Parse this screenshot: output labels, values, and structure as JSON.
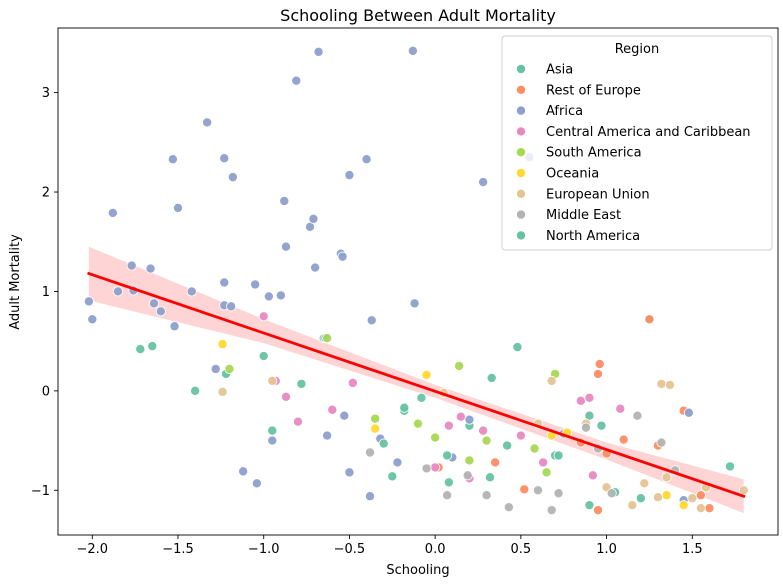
{
  "chart_data": {
    "type": "scatter",
    "title": "Schooling Between Adult Mortality",
    "xlabel": "Schooling",
    "ylabel": "Adult Mortality",
    "xlim": [
      -2.2,
      2.0
    ],
    "ylim": [
      -1.45,
      3.65
    ],
    "xticks": [
      -2.0,
      -1.5,
      -1.0,
      -0.5,
      0.0,
      0.5,
      1.0,
      1.5
    ],
    "xtick_labels": [
      "−2.0",
      "−1.5",
      "−1.0",
      "−0.5",
      "0.0",
      "0.5",
      "1.0",
      "1.5"
    ],
    "yticks": [
      -1,
      0,
      1,
      2,
      3
    ],
    "ytick_labels": [
      "−1",
      "0",
      "1",
      "2",
      "3"
    ],
    "grid": false,
    "legend": {
      "title": "Region",
      "placement": "top-right",
      "entries": [
        "Asia",
        "Rest of Europe",
        "Africa",
        "Central America and Caribbean",
        "South America",
        "Oceania",
        "European Union",
        "Middle East",
        "North America"
      ]
    },
    "colors": {
      "Asia": "#66c2a5",
      "Rest of Europe": "#fc8d62",
      "Africa": "#8da0cb",
      "Central America and Caribbean": "#e78ac3",
      "South America": "#a6d854",
      "Oceania": "#ffd92f",
      "European Union": "#e5c494",
      "Middle East": "#b3b3b3",
      "North America": "#66c2a5",
      "regression_line": "#ff0000",
      "confidence_band": "#ffcccc"
    },
    "regression": {
      "x_range": [
        -2.02,
        1.8
      ],
      "y_at_start": 1.18,
      "y_at_end": -1.06,
      "band": [
        {
          "x": -2.02,
          "lo": 0.91,
          "hi": 1.45
        },
        {
          "x": -1.0,
          "lo": 0.48,
          "hi": 0.72
        },
        {
          "x": 0.0,
          "lo": -0.07,
          "hi": 0.06
        },
        {
          "x": 1.0,
          "lo": -0.69,
          "hi": -0.52
        },
        {
          "x": 1.8,
          "lo": -1.23,
          "hi": -0.89
        }
      ]
    },
    "series": [
      {
        "name": "Asia",
        "points": [
          [
            -1.65,
            0.45
          ],
          [
            -1.22,
            0.17
          ],
          [
            0.2,
            -0.35
          ],
          [
            0.42,
            -0.55
          ],
          [
            0.48,
            0.44
          ],
          [
            0.7,
            -0.65
          ],
          [
            1.05,
            -1.02
          ],
          [
            1.2,
            -1.08
          ],
          [
            1.25,
            0.72
          ],
          [
            -0.65,
            0.53
          ],
          [
            0.08,
            -0.92
          ],
          [
            0.9,
            -0.25
          ],
          [
            -0.18,
            -0.2
          ],
          [
            0.33,
            0.13
          ],
          [
            1.72,
            -0.76
          ],
          [
            -0.95,
            -0.4
          ]
        ]
      },
      {
        "name": "Rest of Europe",
        "points": [
          [
            0.35,
            -0.72
          ],
          [
            0.52,
            -0.99
          ],
          [
            0.85,
            -0.52
          ],
          [
            0.96,
            0.27
          ],
          [
            1.0,
            -0.63
          ],
          [
            1.1,
            -0.49
          ],
          [
            1.45,
            -0.2
          ],
          [
            1.55,
            -1.05
          ],
          [
            0.95,
            0.17
          ],
          [
            1.3,
            -0.55
          ],
          [
            0.02,
            -0.77
          ],
          [
            1.25,
            0.72
          ],
          [
            0.95,
            -1.2
          ],
          [
            1.6,
            -1.18
          ]
        ]
      },
      {
        "name": "Africa",
        "points": [
          [
            -2.02,
            0.9
          ],
          [
            -2.0,
            0.72
          ],
          [
            -1.88,
            1.79
          ],
          [
            -1.85,
            1.0
          ],
          [
            -1.77,
            1.26
          ],
          [
            -1.76,
            1.01
          ],
          [
            -1.66,
            1.23
          ],
          [
            -1.64,
            0.88
          ],
          [
            -1.6,
            0.8
          ],
          [
            -1.53,
            2.33
          ],
          [
            -1.52,
            0.65
          ],
          [
            -1.5,
            1.84
          ],
          [
            -1.42,
            1.0
          ],
          [
            -1.33,
            2.7
          ],
          [
            -1.28,
            0.22
          ],
          [
            -1.23,
            2.34
          ],
          [
            -1.23,
            1.09
          ],
          [
            -1.23,
            0.86
          ],
          [
            -1.19,
            0.85
          ],
          [
            -1.18,
            2.15
          ],
          [
            -1.12,
            -0.81
          ],
          [
            -1.05,
            1.07
          ],
          [
            -1.04,
            -0.93
          ],
          [
            -0.97,
            0.95
          ],
          [
            -0.9,
            0.96
          ],
          [
            -0.88,
            1.91
          ],
          [
            -0.87,
            1.45
          ],
          [
            -0.81,
            3.12
          ],
          [
            -0.73,
            1.65
          ],
          [
            -0.71,
            1.73
          ],
          [
            -0.7,
            1.24
          ],
          [
            -0.68,
            3.41
          ],
          [
            -0.64,
            0.53
          ],
          [
            -0.63,
            -0.45
          ],
          [
            -0.55,
            1.38
          ],
          [
            -0.54,
            1.35
          ],
          [
            -0.5,
            2.17
          ],
          [
            -0.5,
            -0.82
          ],
          [
            -0.4,
            2.33
          ],
          [
            -0.37,
            0.71
          ],
          [
            -0.32,
            -0.48
          ],
          [
            -0.22,
            -0.72
          ],
          [
            -0.13,
            3.42
          ],
          [
            -0.12,
            0.88
          ],
          [
            0.28,
            2.1
          ],
          [
            0.55,
            2.35
          ],
          [
            -0.95,
            -0.5
          ],
          [
            -0.53,
            -0.25
          ],
          [
            -0.38,
            -1.06
          ],
          [
            0.1,
            -0.67
          ],
          [
            0.2,
            -0.29
          ],
          [
            0.75,
            -0.43
          ],
          [
            1.45,
            -1.1
          ],
          [
            1.48,
            -0.22
          ]
        ]
      },
      {
        "name": "Central America and Caribbean",
        "points": [
          [
            -1.0,
            0.75
          ],
          [
            -0.93,
            0.1
          ],
          [
            -0.87,
            -0.06
          ],
          [
            -0.8,
            -0.31
          ],
          [
            -0.6,
            -0.19
          ],
          [
            -0.48,
            0.08
          ],
          [
            0.0,
            -0.77
          ],
          [
            0.08,
            -0.35
          ],
          [
            0.15,
            -0.26
          ],
          [
            0.2,
            -0.88
          ],
          [
            0.28,
            -0.4
          ],
          [
            0.5,
            -0.45
          ],
          [
            0.63,
            -0.72
          ],
          [
            0.85,
            -0.1
          ],
          [
            0.9,
            -0.07
          ],
          [
            0.92,
            -0.85
          ],
          [
            1.08,
            -0.18
          ]
        ]
      },
      {
        "name": "South America",
        "points": [
          [
            -1.2,
            0.22
          ],
          [
            -0.63,
            0.53
          ],
          [
            -0.35,
            -0.28
          ],
          [
            -0.1,
            -0.33
          ],
          [
            0.0,
            -0.47
          ],
          [
            0.14,
            0.25
          ],
          [
            0.2,
            -0.7
          ],
          [
            0.3,
            -0.5
          ],
          [
            0.58,
            -0.58
          ],
          [
            0.65,
            -0.82
          ],
          [
            0.7,
            0.17
          ]
        ]
      },
      {
        "name": "Oceania",
        "points": [
          [
            -1.24,
            0.47
          ],
          [
            -0.35,
            -0.38
          ],
          [
            -0.05,
            0.16
          ],
          [
            0.68,
            -0.45
          ],
          [
            0.77,
            -0.42
          ],
          [
            1.35,
            -1.05
          ],
          [
            1.45,
            -1.15
          ]
        ]
      },
      {
        "name": "European Union",
        "points": [
          [
            -1.24,
            -0.01
          ],
          [
            -0.95,
            0.1
          ],
          [
            0.05,
            -0.02
          ],
          [
            0.6,
            -0.33
          ],
          [
            0.68,
            0.1
          ],
          [
            0.88,
            -0.33
          ],
          [
            1.0,
            -0.97
          ],
          [
            1.15,
            -1.15
          ],
          [
            1.22,
            -0.93
          ],
          [
            1.3,
            -1.07
          ],
          [
            1.32,
            0.07
          ],
          [
            1.35,
            -0.87
          ],
          [
            1.37,
            0.06
          ],
          [
            1.5,
            -1.08
          ],
          [
            1.55,
            -1.18
          ],
          [
            1.58,
            -0.97
          ],
          [
            1.8,
            -1.0
          ]
        ]
      },
      {
        "name": "Middle East",
        "points": [
          [
            -0.38,
            -0.62
          ],
          [
            -0.05,
            -0.78
          ],
          [
            0.07,
            -1.05
          ],
          [
            0.19,
            -0.85
          ],
          [
            0.3,
            -1.05
          ],
          [
            0.43,
            -1.17
          ],
          [
            0.6,
            -1.0
          ],
          [
            0.68,
            -1.2
          ],
          [
            0.72,
            -1.03
          ],
          [
            0.88,
            -0.37
          ],
          [
            0.95,
            -0.58
          ],
          [
            1.03,
            -1.03
          ],
          [
            1.18,
            -0.25
          ],
          [
            1.32,
            -0.52
          ],
          [
            1.4,
            -0.8
          ]
        ]
      },
      {
        "name": "North America",
        "points": [
          [
            -1.72,
            0.42
          ],
          [
            -1.4,
            0.0
          ],
          [
            -1.0,
            0.35
          ],
          [
            -0.78,
            0.07
          ],
          [
            -0.3,
            -0.53
          ],
          [
            -0.25,
            -0.86
          ],
          [
            -0.18,
            -0.17
          ],
          [
            -0.08,
            -0.07
          ],
          [
            0.07,
            -0.65
          ],
          [
            0.32,
            -0.87
          ],
          [
            0.72,
            -0.65
          ],
          [
            0.9,
            -1.15
          ],
          [
            0.97,
            -0.35
          ]
        ]
      }
    ]
  }
}
